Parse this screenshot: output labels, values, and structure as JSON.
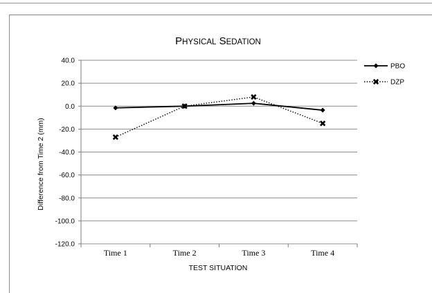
{
  "chart_data": {
    "type": "line",
    "title": "Physical Sedation",
    "xlabel": "TEST SITUATION",
    "ylabel": "Difference from Time 2 (mm)",
    "categories": [
      "Time 1",
      "Time 2",
      "Time 3",
      "Time 4"
    ],
    "ylim": [
      -120,
      40
    ],
    "yticks": [
      "40.0",
      "20.0",
      "0.0",
      "-20.0",
      "-40.0",
      "-60.0",
      "-80.0",
      "-100.0",
      "-120.0"
    ],
    "grid": true,
    "legend_position": "right",
    "series": [
      {
        "name": "PBO",
        "values": [
          -1.5,
          0.0,
          2.5,
          -3.5
        ],
        "color": "#000000",
        "line_style": "solid",
        "marker": "diamond"
      },
      {
        "name": "DZP",
        "values": [
          -27.0,
          0.0,
          8.0,
          -15.0
        ],
        "color": "#000000",
        "line_style": "dotted",
        "marker": "x"
      }
    ]
  }
}
